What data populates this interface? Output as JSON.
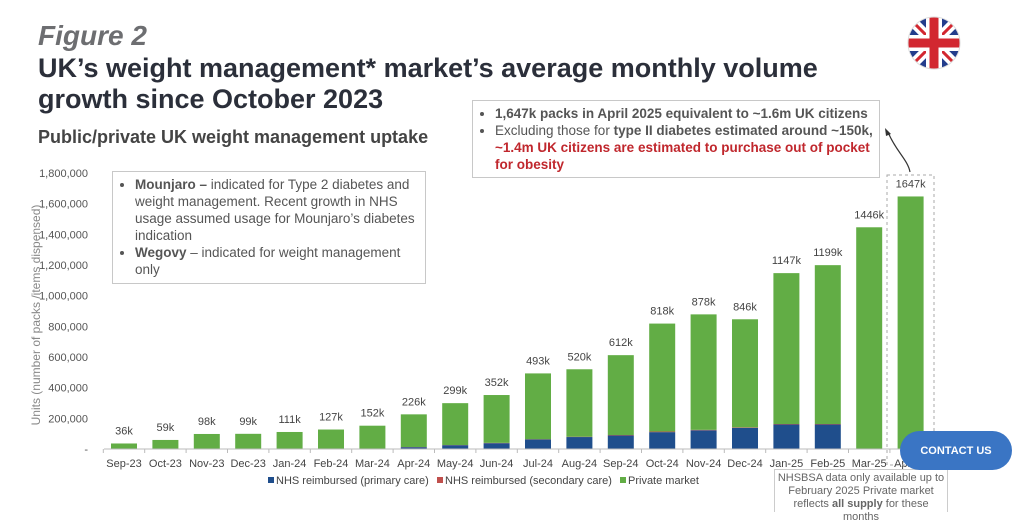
{
  "figure_label": "Figure 2",
  "title": "UK’s weight management* market’s average monthly volume growth since October 2023",
  "subtitle": "Public/private UK weight management uptake",
  "mounjaro_box": {
    "item1_bold": "Mounjaro –",
    "item1_text": " indicated for Type 2 diabetes and weight management. Recent growth in NHS usage assumed usage for Mounjaro’s diabetes indication",
    "item2_bold": "Wegovy",
    "item2_text": " – indicated for weight management only"
  },
  "top_box": {
    "item1": "1,647k packs in April 2025 equivalent to ~1.6m UK citizens",
    "item2_pre": "Excluding those for ",
    "item2_bold": "type II diabetes estimated around ~150k, ",
    "item2_red": "~1.4m UK citizens are estimated to purchase out of pocket for obesity"
  },
  "note": {
    "pre": "NHSBSA data only available up to February 2025 Private market reflects ",
    "bold": "all supply",
    "post": " for these months"
  },
  "contact_button": "CONTACT US",
  "flag_icon": "uk-flag-icon",
  "colors": {
    "primary": "#1f4e8c",
    "secondary": "#c0504d",
    "private": "#62ad45"
  },
  "chart_data": {
    "type": "bar",
    "stacked": true,
    "ylabel": "Units (number of packs /items dispensed)",
    "ylim": [
      0,
      1800000
    ],
    "yticks": [
      "-",
      "200,000",
      "400,000",
      "600,000",
      "800,000",
      "1,000,000",
      "1,200,000",
      "1,400,000",
      "1,600,000",
      "1,800,000"
    ],
    "categories": [
      "Sep-23",
      "Oct-23",
      "Nov-23",
      "Dec-23",
      "Jan-24",
      "Feb-24",
      "Mar-24",
      "Apr-24",
      "May-24",
      "Jun-24",
      "Jul-24",
      "Aug-24",
      "Sep-24",
      "Oct-24",
      "Nov-24",
      "Dec-24",
      "Jan-25",
      "Feb-25",
      "Mar-25",
      "Apr-25"
    ],
    "totals_labels": [
      "36k",
      "59k",
      "98k",
      "99k",
      "111k",
      "127k",
      "152k",
      "226k",
      "299k",
      "352k",
      "493k",
      "520k",
      "612k",
      "818k",
      "878k",
      "846k",
      "1147k",
      "1199k",
      "1446k",
      "1647k"
    ],
    "series": [
      {
        "name": "NHS reimbursed (primary care)",
        "values": [
          0,
          0,
          0,
          0,
          0,
          0,
          0,
          12000,
          25000,
          38000,
          62000,
          78000,
          88000,
          110000,
          122000,
          138000,
          160000,
          160000,
          0,
          0
        ]
      },
      {
        "name": "NHS reimbursed (secondary care)",
        "values": [
          0,
          0,
          0,
          0,
          0,
          0,
          0,
          1000,
          1000,
          2000,
          2000,
          2000,
          3000,
          4000,
          3000,
          3000,
          3000,
          3000,
          0,
          0
        ]
      },
      {
        "name": "Private market",
        "values": [
          36000,
          59000,
          98000,
          99000,
          111000,
          127000,
          152000,
          213000,
          273000,
          312000,
          429000,
          440000,
          521000,
          704000,
          753000,
          705000,
          984000,
          1036000,
          1446000,
          1647000
        ]
      }
    ],
    "legend_position": "bottom"
  }
}
